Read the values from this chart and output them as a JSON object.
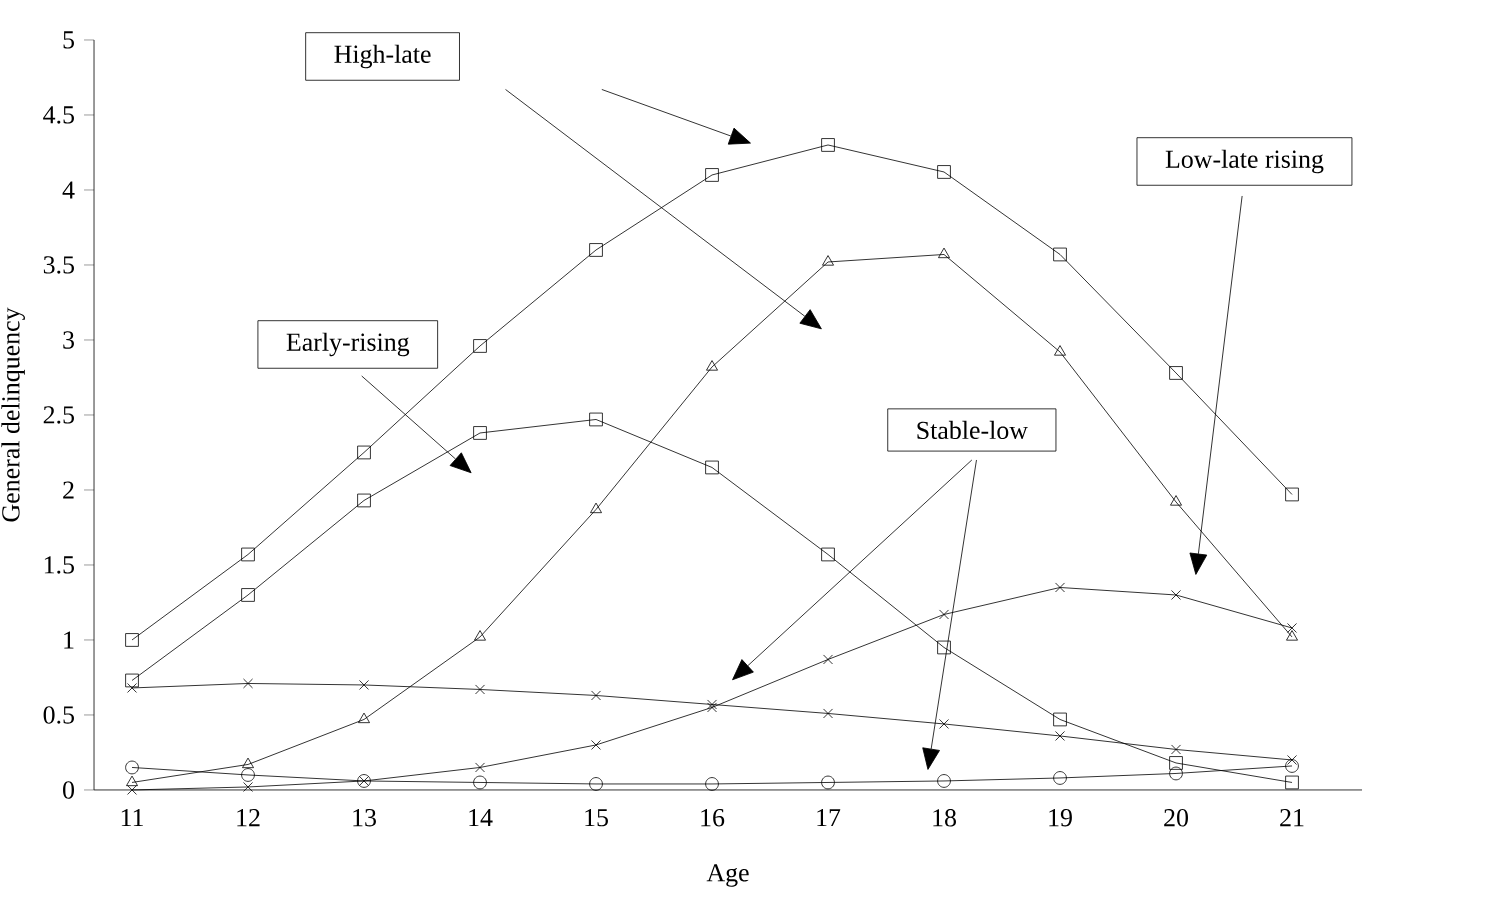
{
  "chart_data": {
    "type": "line",
    "xlabel": "Age",
    "ylabel": "General delinquency",
    "categories": [
      "11",
      "12",
      "13",
      "14",
      "15",
      "16",
      "17",
      "18",
      "19",
      "20",
      "21"
    ],
    "series": [
      {
        "color": "#000000",
        "marker": "square",
        "values": [
          1.0,
          1.57,
          2.25,
          2.96,
          3.6,
          4.1,
          4.3,
          4.12,
          3.57,
          2.78,
          1.97
        ]
      },
      {
        "color": "#000000",
        "marker": "square",
        "values": [
          0.73,
          1.3,
          1.93,
          2.38,
          2.47,
          2.15,
          1.57,
          0.95,
          0.47,
          0.18,
          0.05
        ]
      },
      {
        "color": "#000000",
        "marker": "triangle",
        "values": [
          0.05,
          0.17,
          0.47,
          1.02,
          1.87,
          2.82,
          3.52,
          3.57,
          2.92,
          1.92,
          1.02
        ]
      },
      {
        "color": "#000000",
        "marker": "cross",
        "values": [
          0.0,
          0.02,
          0.06,
          0.15,
          0.3,
          0.55,
          0.87,
          1.17,
          1.35,
          1.3,
          1.08
        ]
      },
      {
        "color": "#000000",
        "marker": "cross",
        "values": [
          0.68,
          0.71,
          0.7,
          0.67,
          0.63,
          0.57,
          0.51,
          0.44,
          0.36,
          0.27,
          0.2
        ]
      },
      {
        "color": "#000000",
        "marker": "circle",
        "values": [
          0.15,
          0.1,
          0.06,
          0.05,
          0.04,
          0.04,
          0.05,
          0.06,
          0.08,
          0.11,
          0.16
        ]
      }
    ],
    "ylim": [
      0,
      5
    ],
    "yticks": [
      0,
      0.5,
      1,
      1.5,
      2,
      2.5,
      3,
      3.5,
      4,
      4.5,
      5
    ],
    "line_style": "solid",
    "grid": false,
    "annotations": [
      "High-late",
      "Early-rising",
      "Stable-low",
      "Low-late rising"
    ]
  }
}
